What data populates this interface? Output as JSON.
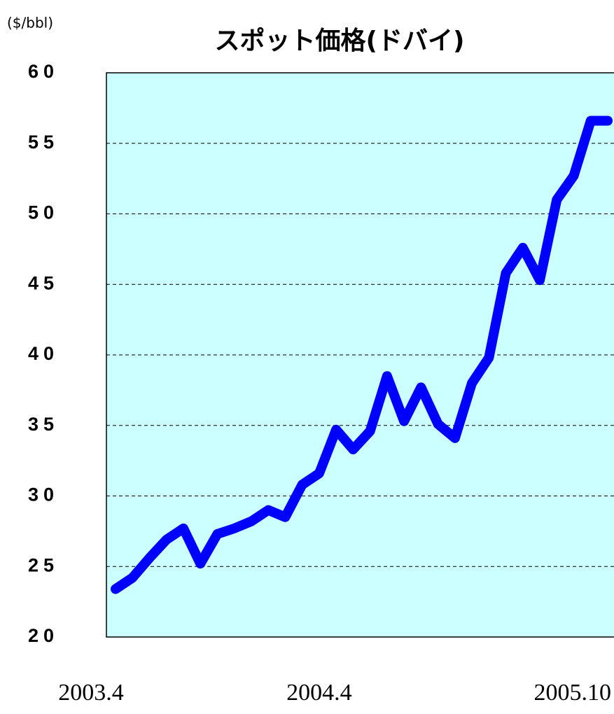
{
  "chart_data": {
    "type": "line",
    "title": "スポット価格(ドバイ)",
    "y_axis_label": "($/bbl)",
    "categories": [
      "2003.4",
      null,
      null,
      null,
      null,
      null,
      null,
      null,
      null,
      null,
      null,
      null,
      "2004.4",
      null,
      null,
      null,
      null,
      null,
      null,
      null,
      null,
      null,
      null,
      null,
      null,
      null,
      null,
      null,
      null,
      "2005.10"
    ],
    "series": [
      {
        "name": "ドバイ",
        "color": "#0000ff",
        "values": [
          23.4,
          24.2,
          25.6,
          26.9,
          27.7,
          25.2,
          27.3,
          27.7,
          28.2,
          29.0,
          28.5,
          30.8,
          31.6,
          34.7,
          33.3,
          34.6,
          38.5,
          35.3,
          37.7,
          35.1,
          34.1,
          38.0,
          39.8,
          45.8,
          47.6,
          45.3,
          51.0,
          52.7,
          56.6,
          56.6
        ]
      }
    ],
    "ylim": [
      20,
      60
    ],
    "yticks": [
      20,
      25,
      30,
      35,
      40,
      45,
      50,
      55,
      60
    ],
    "grid": true
  }
}
